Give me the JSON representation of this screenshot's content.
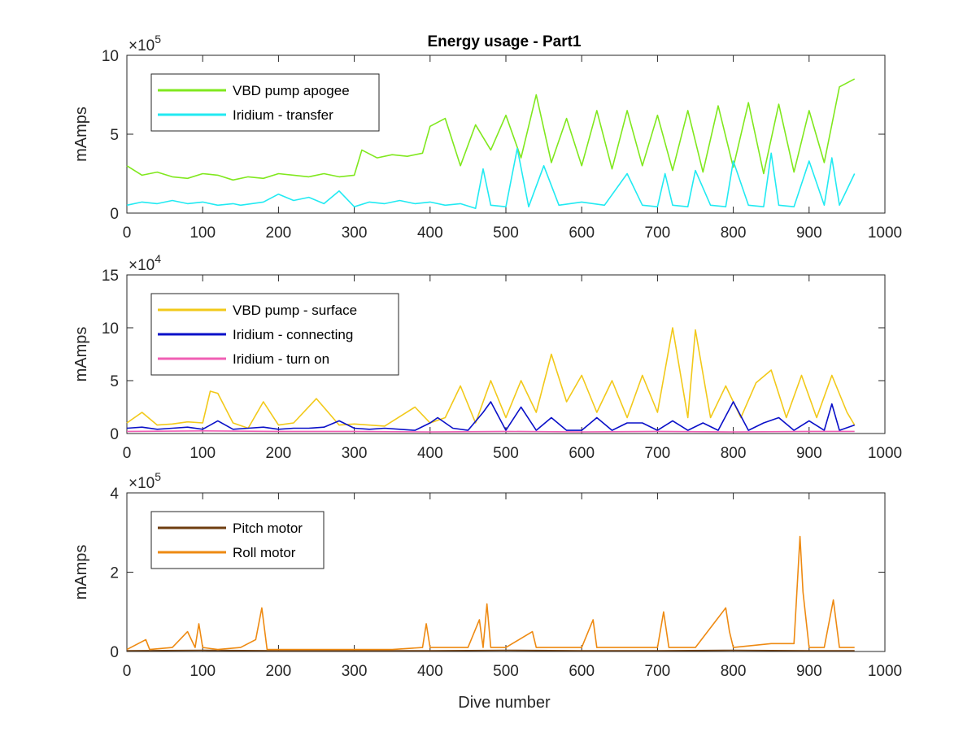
{
  "figure": {
    "title": "Energy usage - Part1",
    "xlabel": "Dive number"
  },
  "chart_data": [
    {
      "type": "line",
      "ylabel": "mAmps",
      "exponent": "5",
      "xlim": [
        0,
        1000
      ],
      "ylim": [
        0,
        10
      ],
      "xticks": [
        "0",
        "100",
        "200",
        "300",
        "400",
        "500",
        "600",
        "700",
        "800",
        "900",
        "1000"
      ],
      "yticks": [
        "0",
        "5",
        "10"
      ],
      "legend_position": "top-left",
      "series": [
        {
          "name": "VBD pump apogee",
          "color": "#80e81e",
          "x": [
            0,
            20,
            40,
            60,
            80,
            100,
            120,
            140,
            160,
            180,
            200,
            220,
            240,
            260,
            280,
            300,
            310,
            330,
            350,
            370,
            390,
            400,
            420,
            440,
            460,
            480,
            500,
            520,
            540,
            560,
            580,
            600,
            620,
            640,
            660,
            680,
            700,
            720,
            740,
            760,
            780,
            800,
            820,
            840,
            860,
            880,
            900,
            920,
            940,
            960
          ],
          "y": [
            3.0,
            2.4,
            2.6,
            2.3,
            2.2,
            2.5,
            2.4,
            2.1,
            2.3,
            2.2,
            2.5,
            2.4,
            2.3,
            2.5,
            2.3,
            2.4,
            4.0,
            3.5,
            3.7,
            3.6,
            3.8,
            5.5,
            6.0,
            3.0,
            5.6,
            4.0,
            6.2,
            3.5,
            7.5,
            3.2,
            6.0,
            3.0,
            6.5,
            2.8,
            6.5,
            3.0,
            6.2,
            2.7,
            6.5,
            2.6,
            6.8,
            2.9,
            7.0,
            2.5,
            6.9,
            2.6,
            6.5,
            3.2,
            8.0,
            8.5
          ]
        },
        {
          "name": "Iridium - transfer",
          "color": "#22eaf2",
          "x": [
            0,
            20,
            40,
            60,
            80,
            100,
            120,
            140,
            150,
            180,
            200,
            220,
            240,
            260,
            280,
            300,
            320,
            340,
            360,
            380,
            400,
            420,
            440,
            460,
            470,
            480,
            500,
            515,
            530,
            550,
            570,
            600,
            630,
            660,
            680,
            700,
            710,
            720,
            740,
            750,
            770,
            790,
            800,
            820,
            840,
            850,
            860,
            880,
            900,
            920,
            930,
            940,
            960
          ],
          "y": [
            0.5,
            0.7,
            0.6,
            0.8,
            0.6,
            0.7,
            0.5,
            0.6,
            0.5,
            0.7,
            1.2,
            0.8,
            1.0,
            0.6,
            1.4,
            0.4,
            0.7,
            0.6,
            0.8,
            0.6,
            0.7,
            0.5,
            0.6,
            0.3,
            2.8,
            0.5,
            0.4,
            4.1,
            0.4,
            3.0,
            0.5,
            0.7,
            0.5,
            2.5,
            0.5,
            0.4,
            2.5,
            0.5,
            0.4,
            2.7,
            0.5,
            0.4,
            3.3,
            0.5,
            0.4,
            3.8,
            0.5,
            0.4,
            3.3,
            0.5,
            3.5,
            0.5,
            2.5
          ]
        }
      ]
    },
    {
      "type": "line",
      "ylabel": "mAmps",
      "exponent": "4",
      "xlim": [
        0,
        1000
      ],
      "ylim": [
        0,
        15
      ],
      "xticks": [
        "0",
        "100",
        "200",
        "300",
        "400",
        "500",
        "600",
        "700",
        "800",
        "900",
        "1000"
      ],
      "yticks": [
        "0",
        "5",
        "10",
        "15"
      ],
      "legend_position": "top-left",
      "series": [
        {
          "name": "VBD pump - surface",
          "color": "#f2c91a",
          "x": [
            0,
            20,
            40,
            60,
            80,
            100,
            110,
            120,
            140,
            160,
            180,
            200,
            220,
            250,
            280,
            300,
            340,
            380,
            400,
            420,
            440,
            460,
            480,
            500,
            520,
            540,
            560,
            580,
            600,
            620,
            640,
            660,
            680,
            700,
            720,
            740,
            750,
            770,
            790,
            810,
            830,
            850,
            870,
            890,
            910,
            930,
            950,
            960
          ],
          "y": [
            1.0,
            2.0,
            0.8,
            0.9,
            1.1,
            1.0,
            4.0,
            3.8,
            1.0,
            0.5,
            3.0,
            0.8,
            1.0,
            3.3,
            0.8,
            0.9,
            0.7,
            2.5,
            1.0,
            1.5,
            4.5,
            1.0,
            5.0,
            1.5,
            5.0,
            2.0,
            7.5,
            3.0,
            5.5,
            2.0,
            5.0,
            1.5,
            5.5,
            2.0,
            10.0,
            1.5,
            9.8,
            1.5,
            4.5,
            1.5,
            4.8,
            6.0,
            1.5,
            5.5,
            1.5,
            5.5,
            2.0,
            0.8
          ]
        },
        {
          "name": "Iridium - connecting",
          "color": "#0a10c8",
          "x": [
            0,
            20,
            40,
            60,
            80,
            100,
            120,
            140,
            160,
            180,
            200,
            220,
            240,
            260,
            280,
            300,
            320,
            340,
            360,
            380,
            400,
            410,
            430,
            450,
            470,
            480,
            500,
            520,
            540,
            560,
            580,
            600,
            620,
            640,
            660,
            680,
            700,
            720,
            740,
            760,
            780,
            800,
            820,
            840,
            860,
            880,
            900,
            920,
            930,
            940,
            960
          ],
          "y": [
            0.5,
            0.6,
            0.4,
            0.5,
            0.6,
            0.4,
            1.2,
            0.4,
            0.5,
            0.6,
            0.4,
            0.5,
            0.5,
            0.6,
            1.2,
            0.5,
            0.4,
            0.5,
            0.4,
            0.3,
            1.0,
            1.5,
            0.5,
            0.3,
            2.0,
            3.0,
            0.3,
            2.5,
            0.3,
            1.5,
            0.3,
            0.3,
            1.5,
            0.3,
            1.0,
            1.0,
            0.3,
            1.2,
            0.3,
            1.0,
            0.3,
            3.0,
            0.3,
            1.0,
            1.5,
            0.3,
            1.2,
            0.3,
            2.8,
            0.3,
            0.8
          ]
        },
        {
          "name": "Iridium - turn on",
          "color": "#f05fb4",
          "x": [
            0,
            100,
            200,
            300,
            400,
            500,
            600,
            700,
            800,
            900,
            960
          ],
          "y": [
            0.2,
            0.25,
            0.2,
            0.2,
            0.15,
            0.2,
            0.15,
            0.2,
            0.15,
            0.2,
            0.2
          ]
        }
      ]
    },
    {
      "type": "line",
      "ylabel": "mAmps",
      "exponent": "5",
      "xlim": [
        0,
        1000
      ],
      "ylim": [
        0,
        4
      ],
      "xticks": [
        "0",
        "100",
        "200",
        "300",
        "400",
        "500",
        "600",
        "700",
        "800",
        "900",
        "1000"
      ],
      "yticks": [
        "0",
        "2",
        "4"
      ],
      "legend_position": "top-left",
      "series": [
        {
          "name": "Pitch motor",
          "color": "#6e3d10",
          "x": [
            0,
            100,
            200,
            300,
            400,
            500,
            600,
            700,
            800,
            900,
            960
          ],
          "y": [
            0.02,
            0.03,
            0.02,
            0.02,
            0.02,
            0.03,
            0.02,
            0.02,
            0.03,
            0.02,
            0.02
          ]
        },
        {
          "name": "Roll motor",
          "color": "#ee8a12",
          "x": [
            0,
            25,
            30,
            60,
            80,
            90,
            95,
            100,
            120,
            150,
            170,
            178,
            185,
            200,
            250,
            300,
            350,
            390,
            395,
            400,
            450,
            465,
            470,
            475,
            480,
            485,
            500,
            535,
            540,
            560,
            600,
            615,
            620,
            650,
            700,
            708,
            715,
            750,
            790,
            795,
            800,
            850,
            880,
            888,
            892,
            900,
            920,
            932,
            940,
            960
          ],
          "y": [
            0.05,
            0.3,
            0.05,
            0.1,
            0.5,
            0.1,
            0.7,
            0.1,
            0.05,
            0.1,
            0.3,
            1.1,
            0.05,
            0.05,
            0.05,
            0.05,
            0.05,
            0.1,
            0.7,
            0.1,
            0.1,
            0.8,
            0.1,
            1.2,
            0.1,
            0.1,
            0.1,
            0.5,
            0.1,
            0.1,
            0.1,
            0.8,
            0.1,
            0.1,
            0.1,
            1.0,
            0.1,
            0.1,
            1.1,
            0.5,
            0.1,
            0.2,
            0.2,
            2.9,
            1.5,
            0.1,
            0.1,
            1.3,
            0.1,
            0.1
          ]
        }
      ]
    }
  ]
}
